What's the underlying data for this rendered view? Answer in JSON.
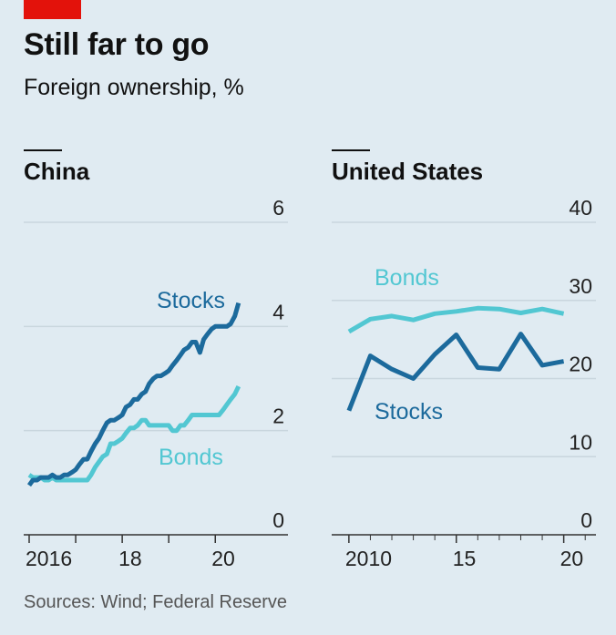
{
  "header": {
    "title": "Still far to go",
    "subtitle": "Foreign ownership, %"
  },
  "footer": {
    "source": "Sources: Wind; Federal Reserve"
  },
  "colors": {
    "background": "#e0ebf2",
    "accent_red": "#e3120b",
    "stocks": "#1c6a9c",
    "bonds": "#52c7d2",
    "grid": "#c9d6de",
    "axis": "#333333"
  },
  "chart_data": [
    {
      "type": "line",
      "title": "China",
      "ylim": [
        0,
        6
      ],
      "yticks": [
        0,
        2,
        4,
        6
      ],
      "xlim": [
        2016,
        2020.7
      ],
      "xtick_labels": [
        {
          "value": 2016,
          "label": "2016"
        },
        {
          "value": 2018,
          "label": "18"
        },
        {
          "value": 2020,
          "label": "20"
        }
      ],
      "series": [
        {
          "name": "Stocks",
          "color": "#1c6a9c",
          "x": [
            2016.0,
            2016.08,
            2016.17,
            2016.25,
            2016.33,
            2016.42,
            2016.5,
            2016.58,
            2016.67,
            2016.75,
            2016.83,
            2016.92,
            2017.0,
            2017.08,
            2017.17,
            2017.25,
            2017.33,
            2017.42,
            2017.5,
            2017.58,
            2017.67,
            2017.75,
            2017.83,
            2017.92,
            2018.0,
            2018.08,
            2018.17,
            2018.25,
            2018.33,
            2018.42,
            2018.5,
            2018.58,
            2018.67,
            2018.75,
            2018.83,
            2018.92,
            2019.0,
            2019.08,
            2019.17,
            2019.25,
            2019.33,
            2019.42,
            2019.5,
            2019.58,
            2019.67,
            2019.75,
            2019.83,
            2019.92,
            2020.0,
            2020.08,
            2020.17,
            2020.25,
            2020.33,
            2020.42,
            2020.5
          ],
          "values": [
            0.95,
            1.05,
            1.05,
            1.1,
            1.1,
            1.1,
            1.15,
            1.1,
            1.1,
            1.15,
            1.15,
            1.2,
            1.25,
            1.35,
            1.45,
            1.45,
            1.6,
            1.75,
            1.85,
            2.0,
            2.15,
            2.2,
            2.2,
            2.25,
            2.3,
            2.45,
            2.5,
            2.6,
            2.6,
            2.7,
            2.75,
            2.9,
            3.0,
            3.05,
            3.05,
            3.1,
            3.15,
            3.25,
            3.35,
            3.45,
            3.55,
            3.6,
            3.7,
            3.7,
            3.5,
            3.75,
            3.85,
            3.95,
            4.0,
            4.0,
            4.0,
            4.0,
            4.05,
            4.2,
            4.45
          ]
        },
        {
          "name": "Bonds",
          "color": "#52c7d2",
          "x": [
            2016.0,
            2016.08,
            2016.17,
            2016.25,
            2016.33,
            2016.42,
            2016.5,
            2016.58,
            2016.67,
            2016.75,
            2016.83,
            2016.92,
            2017.0,
            2017.08,
            2017.17,
            2017.25,
            2017.33,
            2017.42,
            2017.5,
            2017.58,
            2017.67,
            2017.75,
            2017.83,
            2017.92,
            2018.0,
            2018.08,
            2018.17,
            2018.25,
            2018.33,
            2018.42,
            2018.5,
            2018.58,
            2018.67,
            2018.75,
            2018.83,
            2018.92,
            2019.0,
            2019.08,
            2019.17,
            2019.25,
            2019.33,
            2019.42,
            2019.5,
            2019.58,
            2019.67,
            2019.75,
            2019.83,
            2019.92,
            2020.0,
            2020.08,
            2020.17,
            2020.25,
            2020.33,
            2020.42,
            2020.5
          ],
          "values": [
            1.15,
            1.1,
            1.1,
            1.1,
            1.05,
            1.05,
            1.1,
            1.05,
            1.05,
            1.05,
            1.05,
            1.05,
            1.05,
            1.05,
            1.05,
            1.05,
            1.15,
            1.3,
            1.4,
            1.5,
            1.55,
            1.75,
            1.75,
            1.8,
            1.85,
            1.95,
            2.05,
            2.05,
            2.1,
            2.2,
            2.2,
            2.1,
            2.1,
            2.1,
            2.1,
            2.1,
            2.1,
            2.0,
            2.0,
            2.1,
            2.1,
            2.2,
            2.3,
            2.3,
            2.3,
            2.3,
            2.3,
            2.3,
            2.3,
            2.3,
            2.4,
            2.5,
            2.6,
            2.7,
            2.85
          ]
        }
      ],
      "annotations": [
        {
          "text": "Stocks",
          "series": "Stocks"
        },
        {
          "text": "Bonds",
          "series": "Bonds"
        }
      ]
    },
    {
      "type": "line",
      "title": "United States",
      "ylim": [
        0,
        40
      ],
      "yticks": [
        0,
        10,
        20,
        30,
        40
      ],
      "xlim": [
        2009.2,
        2021.5
      ],
      "xtick_labels": [
        {
          "value": 2010,
          "label": "2010"
        },
        {
          "value": 2015,
          "label": "15"
        },
        {
          "value": 2020,
          "label": "20"
        }
      ],
      "series": [
        {
          "name": "Stocks",
          "color": "#1c6a9c",
          "x": [
            2010,
            2011,
            2012,
            2013,
            2014,
            2015,
            2016,
            2017,
            2018,
            2019,
            2020
          ],
          "values": [
            15.9,
            22.9,
            21.2,
            20.0,
            23.1,
            25.6,
            21.4,
            21.2,
            25.7,
            21.7,
            22.2
          ]
        },
        {
          "name": "Bonds",
          "color": "#52c7d2",
          "x": [
            2010,
            2011,
            2012,
            2013,
            2014,
            2015,
            2016,
            2017,
            2018,
            2019,
            2020
          ],
          "values": [
            26.0,
            27.6,
            28.0,
            27.5,
            28.3,
            28.6,
            29.0,
            28.9,
            28.4,
            28.9,
            28.3
          ]
        }
      ],
      "annotations": [
        {
          "text": "Bonds",
          "series": "Bonds"
        },
        {
          "text": "Stocks",
          "series": "Stocks"
        }
      ]
    }
  ]
}
